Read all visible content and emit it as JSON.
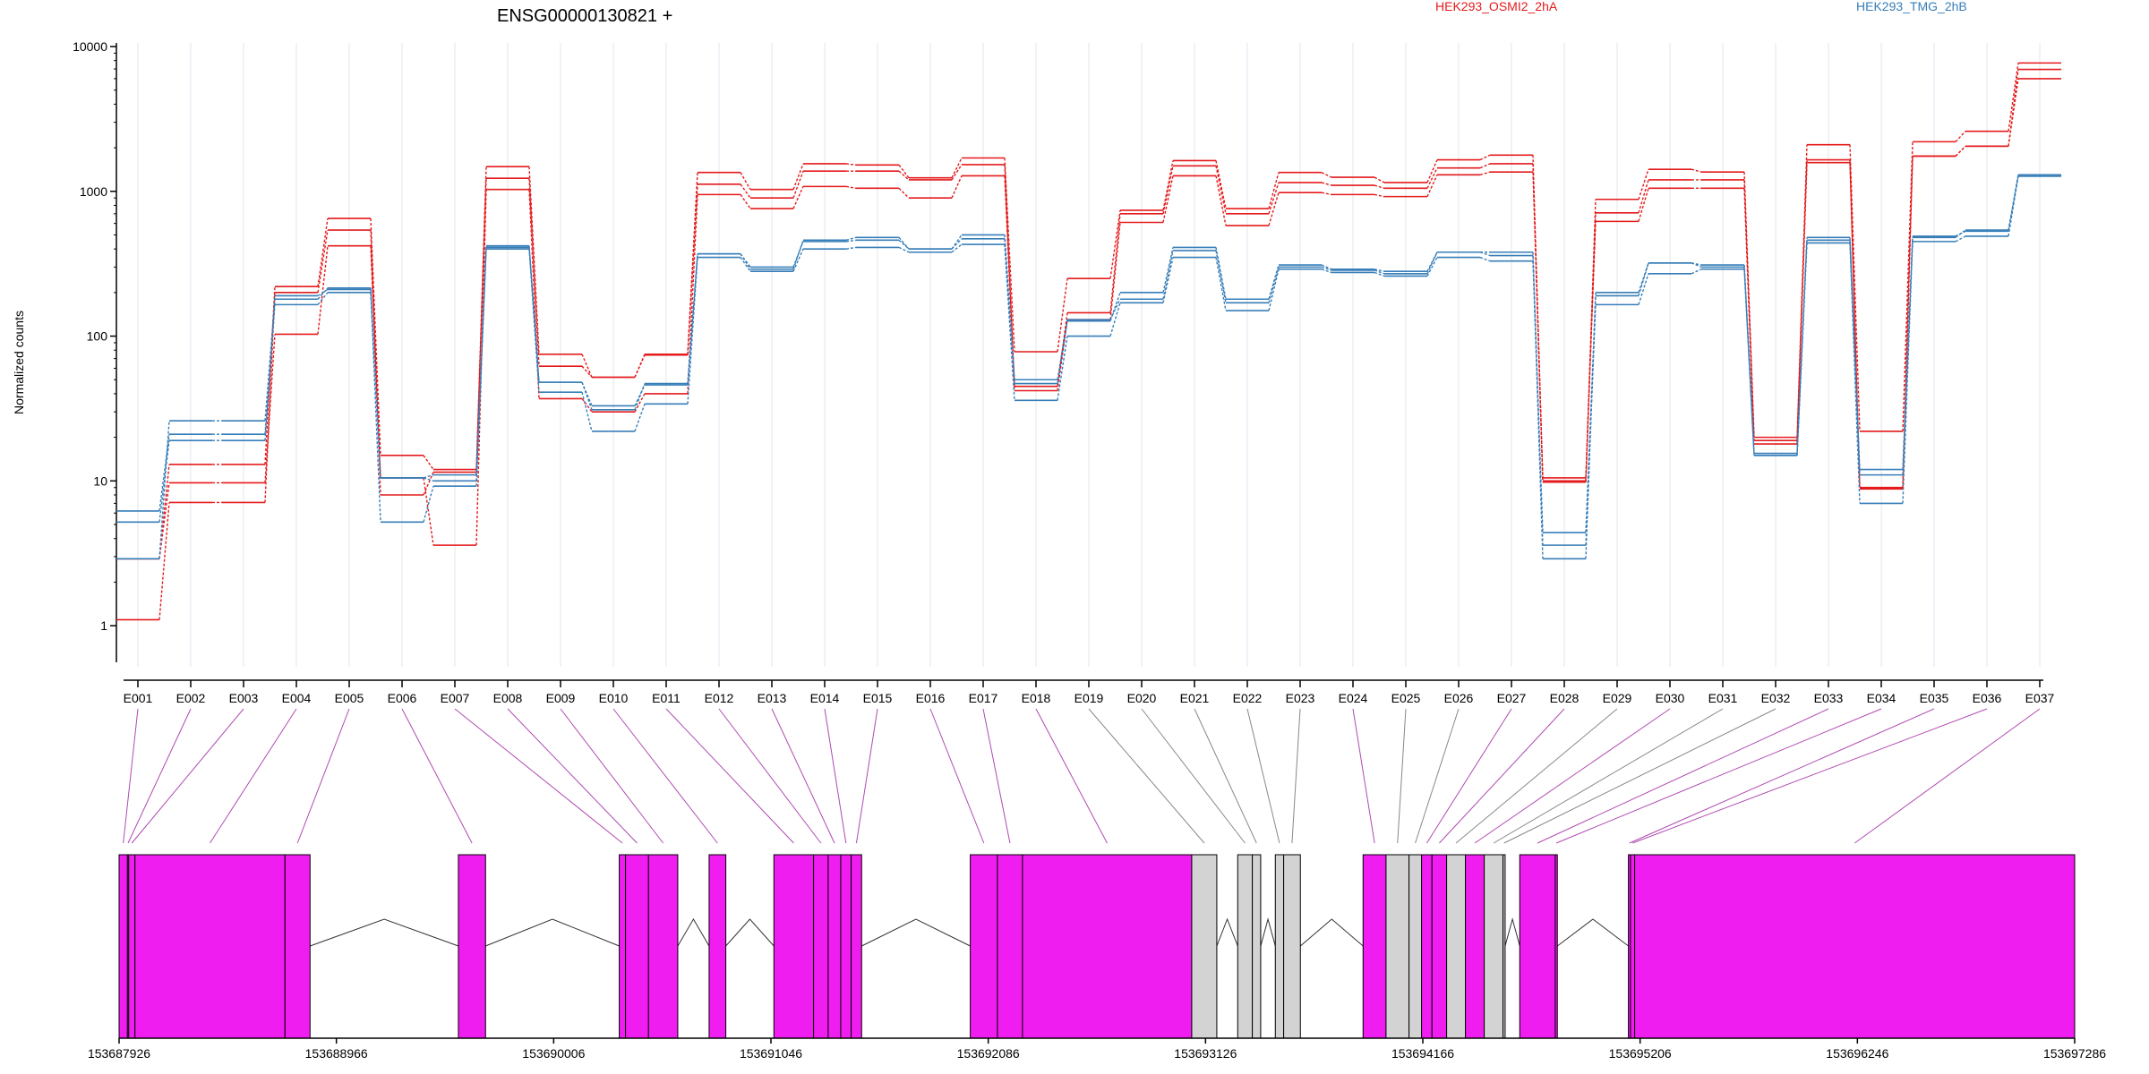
{
  "chart_data": {
    "type": "line",
    "title": "ENSG00000130821 +",
    "ylabel": "Normalized counts",
    "y_scale": "log",
    "ylim": [
      0.6,
      10000
    ],
    "y_ticks": [
      1,
      10,
      100,
      1000,
      10000
    ],
    "y_tick_labels": [
      "1",
      "10",
      "100",
      "1000",
      "10000"
    ],
    "categories": [
      "E001",
      "E002",
      "E003",
      "E004",
      "E005",
      "E006",
      "E007",
      "E008",
      "E009",
      "E010",
      "E011",
      "E012",
      "E013",
      "E014",
      "E015",
      "E016",
      "E017",
      "E018",
      "E019",
      "E020",
      "E021",
      "E022",
      "E023",
      "E024",
      "E025",
      "E026",
      "E027",
      "E028",
      "E029",
      "E030",
      "E031",
      "E032",
      "E033",
      "E034",
      "E035",
      "E036",
      "E037"
    ],
    "legend": [
      {
        "name": "HEK293_OSMI2_2hA",
        "color": "#e41a1c"
      },
      {
        "name": "HEK293_TMG_2hB",
        "color": "#377eb8"
      }
    ],
    "series": [
      {
        "group": "HEK293_OSMI2_2hA",
        "color": "#e41a1c",
        "values": [
          2.9,
          9.7,
          9.7,
          103,
          420,
          10.5,
          3.6,
          1030,
          37,
          30,
          40,
          950,
          760,
          1080,
          1050,
          900,
          1280,
          42,
          130,
          610,
          1280,
          580,
          980,
          950,
          920,
          1300,
          1360,
          10.5,
          620,
          1050,
          1050,
          18,
          1580,
          8.8,
          1750,
          2050,
          6000
        ]
      },
      {
        "group": "HEK293_OSMI2_2hA",
        "color": "#e41a1c",
        "values": [
          1.1,
          7.1,
          7.1,
          200,
          540,
          8.0,
          11.5,
          1230,
          62,
          52,
          74,
          1120,
          900,
          1380,
          1380,
          1200,
          1530,
          45,
          145,
          700,
          1500,
          700,
          1150,
          1100,
          1050,
          1450,
          1550,
          10,
          710,
          1200,
          1200,
          19,
          1650,
          9.0,
          1750,
          2050,
          6950
        ]
      },
      {
        "group": "HEK293_OSMI2_2hA",
        "color": "#e41a1c",
        "values": [
          2.9,
          13,
          13,
          220,
          650,
          15,
          12,
          1480,
          75,
          52,
          75,
          1350,
          1030,
          1550,
          1520,
          1240,
          1700,
          78,
          250,
          740,
          1630,
          760,
          1350,
          1250,
          1150,
          1650,
          1780,
          9.8,
          880,
          1420,
          1360,
          20,
          2100,
          22,
          2200,
          2600,
          7700
        ]
      },
      {
        "group": "HEK293_TMG_2hB",
        "color": "#377eb8",
        "values": [
          5.2,
          19,
          19,
          165,
          200,
          10.5,
          10,
          400,
          41,
          22,
          34,
          350,
          280,
          400,
          410,
          380,
          430,
          36,
          100,
          170,
          350,
          150,
          290,
          275,
          260,
          350,
          330,
          3.6,
          165,
          270,
          290,
          15,
          440,
          7.0,
          450,
          490,
          1270
        ]
      },
      {
        "group": "HEK293_TMG_2hB",
        "color": "#377eb8",
        "values": [
          6.2,
          21,
          21,
          190,
          210,
          5.2,
          9.2,
          420,
          48,
          31,
          47,
          370,
          300,
          450,
          460,
          400,
          470,
          47,
          127,
          200,
          410,
          180,
          310,
          290,
          280,
          380,
          380,
          2.9,
          200,
          320,
          310,
          15.5,
          480,
          11,
          480,
          540,
          1300
        ]
      },
      {
        "group": "HEK293_TMG_2hB",
        "color": "#377eb8",
        "values": [
          2.9,
          26,
          26,
          180,
          215,
          10.5,
          11,
          410,
          48,
          33,
          46,
          370,
          290,
          460,
          480,
          400,
          500,
          50,
          130,
          180,
          390,
          170,
          300,
          285,
          270,
          380,
          360,
          4.4,
          190,
          320,
          300,
          15,
          460,
          12,
          490,
          530,
          1300
        ]
      }
    ],
    "gene_model": {
      "xlim": [
        153687926,
        153697286
      ],
      "tick_labels": [
        "153687926",
        "153688966",
        "153690006",
        "153691046",
        "153692086",
        "153693126",
        "153694166",
        "153695206",
        "153696246",
        "153697286"
      ],
      "exonic_color": "#f01df0",
      "other_color": "#d3d3d3",
      "exons": [
        {
          "id": "E001",
          "start": 153687926,
          "end": 153687966,
          "class": "exonic"
        },
        {
          "id": "E002",
          "start": 153687966,
          "end": 153687972,
          "class": "exonic"
        },
        {
          "id": "E003",
          "start": 153687972,
          "end": 153688002,
          "class": "exonic"
        },
        {
          "id": "E004",
          "start": 153688002,
          "end": 153688720,
          "class": "exonic"
        },
        {
          "id": "E005",
          "start": 153688720,
          "end": 153688840,
          "class": "exonic"
        },
        {
          "id": "E006",
          "start": 153689550,
          "end": 153689680,
          "class": "exonic"
        },
        {
          "id": "E007",
          "start": 153690320,
          "end": 153690350,
          "class": "exonic"
        },
        {
          "id": "E008",
          "start": 153690350,
          "end": 153690460,
          "class": "exonic"
        },
        {
          "id": "E009",
          "start": 153690460,
          "end": 153690600,
          "class": "exonic"
        },
        {
          "id": "E010",
          "start": 153690750,
          "end": 153690830,
          "class": "exonic"
        },
        {
          "id": "E011",
          "start": 153691060,
          "end": 153691250,
          "class": "exonic"
        },
        {
          "id": "E012",
          "start": 153691250,
          "end": 153691320,
          "class": "exonic"
        },
        {
          "id": "E013",
          "start": 153691320,
          "end": 153691380,
          "class": "exonic"
        },
        {
          "id": "E014",
          "start": 153691380,
          "end": 153691430,
          "class": "exonic"
        },
        {
          "id": "E015",
          "start": 153691430,
          "end": 153691480,
          "class": "exonic"
        },
        {
          "id": "E016",
          "start": 153692000,
          "end": 153692130,
          "class": "exonic"
        },
        {
          "id": "E017",
          "start": 153692130,
          "end": 153692250,
          "class": "exonic"
        },
        {
          "id": "E018",
          "start": 153692250,
          "end": 153693060,
          "class": "exonic"
        },
        {
          "id": "E019",
          "start": 153693060,
          "end": 153693180,
          "class": "other"
        },
        {
          "id": "E020",
          "start": 153693280,
          "end": 153693350,
          "class": "other"
        },
        {
          "id": "E021",
          "start": 153693350,
          "end": 153693390,
          "class": "other"
        },
        {
          "id": "E022",
          "start": 153693460,
          "end": 153693500,
          "class": "other"
        },
        {
          "id": "E023",
          "start": 153693500,
          "end": 153693580,
          "class": "other"
        },
        {
          "id": "E024",
          "start": 153693880,
          "end": 153693990,
          "class": "exonic"
        },
        {
          "id": "E025",
          "start": 153693990,
          "end": 153694100,
          "class": "other"
        },
        {
          "id": "E026",
          "start": 153694100,
          "end": 153694160,
          "class": "other"
        },
        {
          "id": "E027",
          "start": 153694160,
          "end": 153694210,
          "class": "exonic"
        },
        {
          "id": "E028",
          "start": 153694210,
          "end": 153694280,
          "class": "exonic"
        },
        {
          "id": "E029",
          "start": 153694280,
          "end": 153694370,
          "class": "other"
        },
        {
          "id": "E030",
          "start": 153694370,
          "end": 153694460,
          "class": "exonic"
        },
        {
          "id": "E031",
          "start": 153694460,
          "end": 153694550,
          "class": "other"
        },
        {
          "id": "E032",
          "start": 153694550,
          "end": 153694560,
          "class": "other"
        },
        {
          "id": "E033",
          "start": 153694630,
          "end": 153694800,
          "class": "exonic"
        },
        {
          "id": "E034",
          "start": 153694800,
          "end": 153694810,
          "class": "exonic"
        },
        {
          "id": "E035",
          "start": 153695150,
          "end": 153695160,
          "class": "exonic"
        },
        {
          "id": "E036",
          "start": 153695160,
          "end": 153695180,
          "class": "exonic"
        },
        {
          "id": "E037",
          "start": 153695180,
          "end": 153697286,
          "class": "exonic"
        }
      ]
    }
  }
}
